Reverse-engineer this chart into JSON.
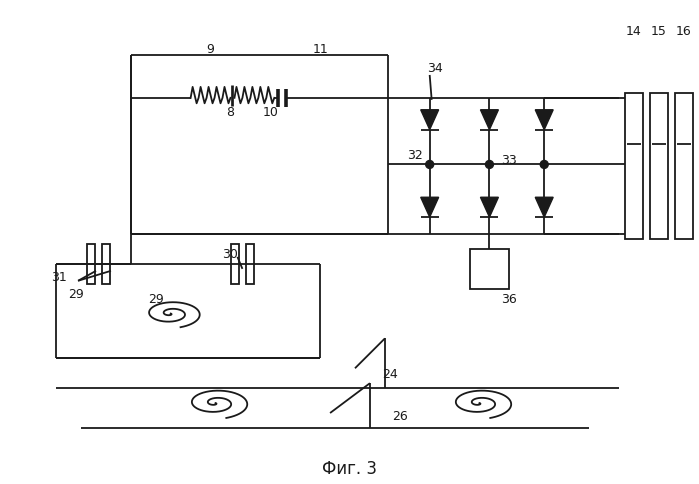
{
  "title": "Фиг. 3",
  "bg_color": "#ffffff",
  "line_color": "#1a1a1a",
  "lw": 1.3
}
